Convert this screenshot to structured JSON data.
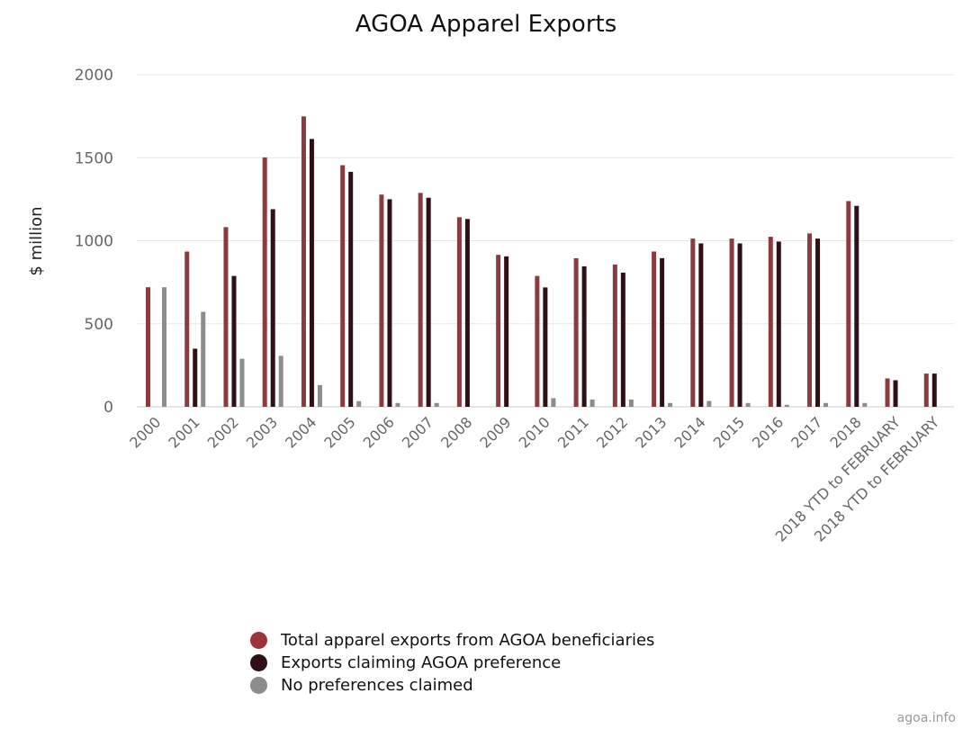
{
  "chart_data": {
    "type": "bar",
    "title": "AGOA Apparel Exports",
    "xlabel": "",
    "ylabel": "$ million",
    "ylim": [
      0,
      2000
    ],
    "yticks": [
      0,
      500,
      1000,
      1500,
      2000
    ],
    "grid": true,
    "legend_position": "bottom",
    "categories": [
      "2000",
      "2001",
      "2002",
      "2003",
      "2004",
      "2005",
      "2006",
      "2007",
      "2008",
      "2009",
      "2010",
      "2011",
      "2012",
      "2013",
      "2014",
      "2015",
      "2016",
      "2017",
      "2018",
      "2018 YTD to FEBRUARY",
      "2018 YTD to FEBRUARY"
    ],
    "series": [
      {
        "name": "Total apparel exports from AGOA beneficiaries",
        "color": "#8b3a3e",
        "values": [
          720,
          935,
          1082,
          1502,
          1749,
          1455,
          1278,
          1288,
          1142,
          915,
          788,
          895,
          857,
          935,
          1013,
          1013,
          1024,
          1044,
          1239,
          171,
          200
        ]
      },
      {
        "name": "Exports claiming AGOA preference",
        "color": "#2e1016",
        "values": [
          0,
          350,
          788,
          1190,
          1613,
          1415,
          1250,
          1259,
          1131,
          906,
          719,
          846,
          808,
          895,
          984,
          984,
          995,
          1013,
          1210,
          160,
          200
        ]
      },
      {
        "name": "No preferences claimed",
        "color": "#8c8c8c",
        "values": [
          720,
          572,
          289,
          307,
          131,
          34,
          23,
          23,
          0,
          0,
          52,
          44,
          44,
          23,
          35,
          23,
          12,
          23,
          23,
          0,
          0
        ]
      }
    ]
  },
  "credit": "agoa.info"
}
